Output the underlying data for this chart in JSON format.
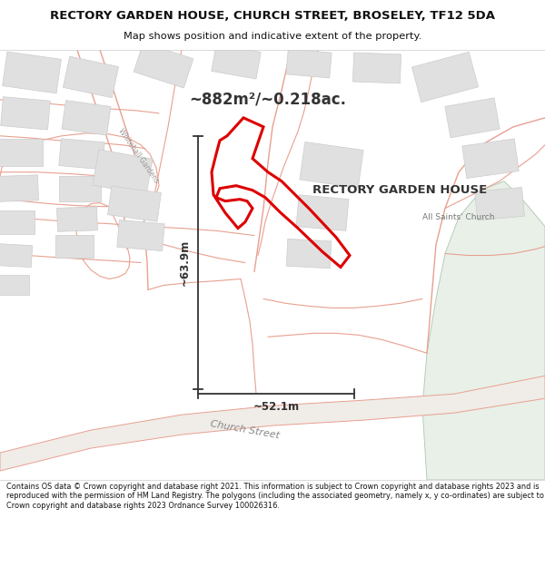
{
  "title_line1": "RECTORY GARDEN HOUSE, CHURCH STREET, BROSELEY, TF12 5DA",
  "title_line2": "Map shows position and indicative extent of the property.",
  "property_label": "RECTORY GARDEN HOUSE",
  "church_label": "All Saints' Church",
  "street_label": "Church Street",
  "whitehall_label": "Whitehall Gardens",
  "area_label": "~882m²/~0.218ac.",
  "width_label": "~52.1m",
  "height_label": "~63.9m",
  "footer": "Contains OS data © Crown copyright and database right 2021. This information is subject to Crown copyright and database rights 2023 and is reproduced with the permission of HM Land Registry. The polygons (including the associated geometry, namely x, y co-ordinates) are subject to Crown copyright and database rights 2023 Ordnance Survey 100026316.",
  "map_bg": "#f8f8f8",
  "road_fill": "#f0ece8",
  "road_outline": "#e8a090",
  "building_fill": "#e0e0e0",
  "building_edge": "#cccccc",
  "green_fill": "#e8f0e8",
  "green_edge": "#b8ccb8",
  "property_color": "#dd0000",
  "dim_color": "#333333",
  "title_bg": "#ffffff",
  "footer_bg": "#ffffff",
  "title_fontsize": 9.5,
  "subtitle_fontsize": 8.2,
  "footer_fontsize": 5.9
}
